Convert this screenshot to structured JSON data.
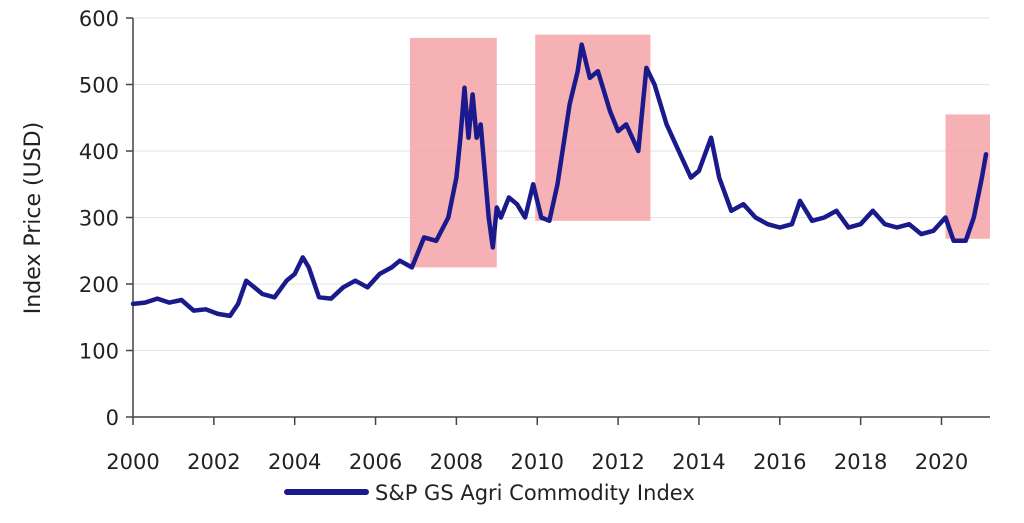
{
  "chart_data": {
    "type": "line",
    "title": "",
    "xlabel": "",
    "ylabel": "Index Price (USD)",
    "xlim": [
      2000,
      2021.2
    ],
    "ylim": [
      0,
      600
    ],
    "x_ticks": [
      2000,
      2002,
      2004,
      2006,
      2008,
      2010,
      2012,
      2014,
      2016,
      2018,
      2020
    ],
    "x_tick_labels": [
      "2000",
      "2002",
      "2004",
      "2006",
      "2008",
      "2010",
      "2012",
      "2014",
      "2016",
      "2018",
      "2020"
    ],
    "y_ticks": [
      0,
      100,
      200,
      300,
      400,
      500,
      600
    ],
    "y_tick_labels": [
      "0",
      "100",
      "200",
      "300",
      "400",
      "500",
      "600"
    ],
    "grid": "horizontal",
    "legend": {
      "position": "bottom",
      "label": "S&P GS Agri Commodity Index"
    },
    "series": [
      {
        "name": "S&P GS Agri Commodity Index",
        "color": "#1a1a8c",
        "x": [
          2000.0,
          2000.3,
          2000.6,
          2000.9,
          2001.2,
          2001.5,
          2001.8,
          2002.1,
          2002.4,
          2002.6,
          2002.8,
          2003.0,
          2003.2,
          2003.5,
          2003.8,
          2004.0,
          2004.2,
          2004.35,
          2004.6,
          2004.9,
          2005.2,
          2005.5,
          2005.8,
          2006.1,
          2006.4,
          2006.6,
          2006.9,
          2007.2,
          2007.5,
          2007.8,
          2008.0,
          2008.1,
          2008.2,
          2008.3,
          2008.4,
          2008.5,
          2008.6,
          2008.8,
          2008.9,
          2009.0,
          2009.1,
          2009.3,
          2009.5,
          2009.7,
          2009.9,
          2010.1,
          2010.3,
          2010.5,
          2010.8,
          2011.0,
          2011.1,
          2011.3,
          2011.5,
          2011.8,
          2012.0,
          2012.2,
          2012.5,
          2012.7,
          2012.9,
          2013.2,
          2013.5,
          2013.8,
          2014.0,
          2014.3,
          2014.5,
          2014.8,
          2015.1,
          2015.4,
          2015.7,
          2016.0,
          2016.3,
          2016.5,
          2016.8,
          2017.1,
          2017.4,
          2017.7,
          2018.0,
          2018.3,
          2018.6,
          2018.9,
          2019.2,
          2019.5,
          2019.8,
          2020.1,
          2020.3,
          2020.6,
          2020.8,
          2021.0,
          2021.1
        ],
        "values": [
          170,
          172,
          178,
          172,
          176,
          160,
          162,
          155,
          152,
          170,
          205,
          195,
          185,
          180,
          205,
          215,
          240,
          225,
          180,
          178,
          195,
          205,
          195,
          215,
          225,
          235,
          225,
          270,
          265,
          300,
          360,
          420,
          495,
          420,
          485,
          420,
          440,
          300,
          255,
          315,
          300,
          330,
          320,
          300,
          350,
          300,
          295,
          350,
          470,
          520,
          560,
          510,
          520,
          460,
          430,
          440,
          400,
          525,
          500,
          440,
          400,
          360,
          370,
          420,
          360,
          310,
          320,
          300,
          290,
          285,
          290,
          325,
          295,
          300,
          310,
          285,
          290,
          310,
          290,
          285,
          290,
          275,
          280,
          300,
          265,
          265,
          300,
          360,
          395
        ]
      }
    ],
    "highlight_regions": [
      {
        "x_start": 2006.85,
        "x_end": 2009.0,
        "y_start": 225,
        "y_end": 570
      },
      {
        "x_start": 2009.95,
        "x_end": 2012.8,
        "y_start": 295,
        "y_end": 575
      },
      {
        "x_start": 2020.1,
        "x_end": 2021.2,
        "y_start": 268,
        "y_end": 455
      }
    ],
    "highlight_color": "#f4a3a8"
  }
}
